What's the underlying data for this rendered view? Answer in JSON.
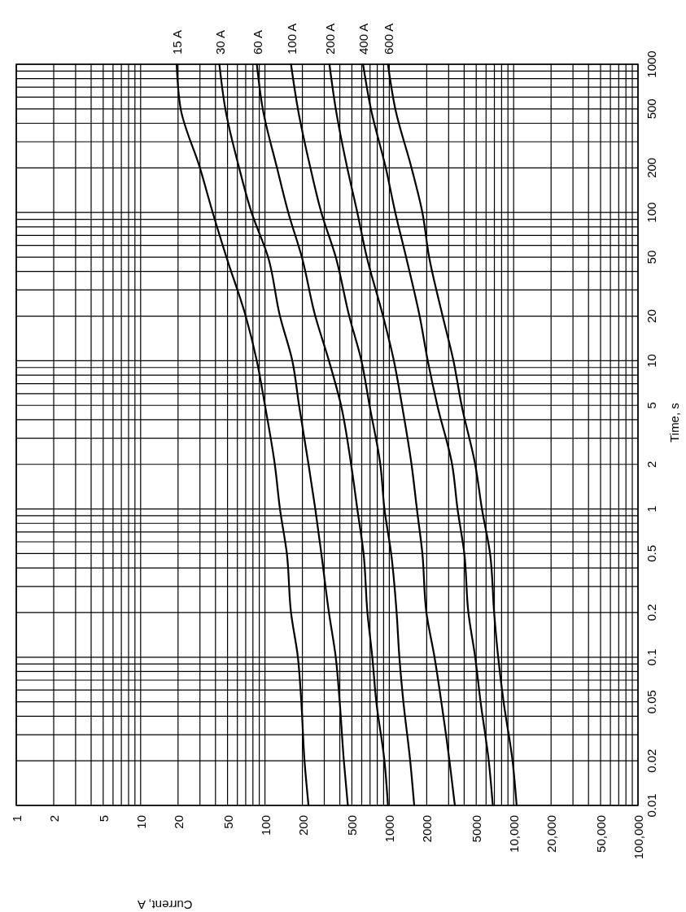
{
  "chart_data": {
    "type": "line",
    "xlabel": "Current, A",
    "ylabel": "Time, s",
    "log": "xy",
    "grid": true,
    "marker": "none",
    "line_style": "solid",
    "xlim": [
      1,
      100000
    ],
    "ylim": [
      0.01,
      1000
    ],
    "xticks": [
      1,
      2,
      5,
      10,
      20,
      50,
      100,
      200,
      500,
      1000,
      2000,
      5000,
      {
        "value": 10000,
        "label": "10,000"
      },
      {
        "value": 20000,
        "label": "20,000"
      },
      {
        "value": 50000,
        "label": "50,000"
      },
      {
        "value": 100000,
        "label": "100,000"
      }
    ],
    "yticks": [
      0.01,
      0.02,
      0.05,
      0.1,
      0.2,
      0.5,
      1,
      2,
      5,
      10,
      20,
      50,
      100,
      200,
      500,
      1000
    ],
    "series": [
      {
        "name": "15 A",
        "color": "#000000",
        "x": [
          19.5,
          21,
          30,
          38,
          49,
          70,
          86,
          100,
          120,
          132,
          150,
          162,
          184,
          196,
          208,
          224
        ],
        "values": [
          1000,
          500,
          200,
          100,
          50,
          20,
          10,
          5,
          2,
          1,
          0.5,
          0.2,
          0.1,
          0.05,
          0.02,
          0.01
        ]
      },
      {
        "name": "30 A",
        "color": "#000000",
        "x": [
          43,
          48,
          62,
          78,
          106,
          132,
          166,
          188,
          224,
          254,
          284,
          327,
          371,
          399,
          431,
          464
        ],
        "values": [
          1000,
          500,
          200,
          100,
          50,
          20,
          10,
          5,
          2,
          1,
          0.5,
          0.2,
          0.1,
          0.05,
          0.02,
          0.01
        ]
      },
      {
        "name": "60 A",
        "color": "#000000",
        "x": [
          86,
          96,
          125,
          154,
          198,
          254,
          327,
          409,
          493,
          553,
          621,
          667,
          730,
          786,
          914,
          975
        ],
        "values": [
          1000,
          500,
          200,
          100,
          50,
          20,
          10,
          5,
          2,
          1,
          0.5,
          0.2,
          0.1,
          0.05,
          0.02,
          0.01
        ]
      },
      {
        "name": "100 A",
        "color": "#000000",
        "x": [
          162,
          184,
          232,
          284,
          371,
          476,
          597,
          693,
          847,
          914,
          1035,
          1145,
          1205,
          1298,
          1472,
          1586
        ],
        "values": [
          1000,
          500,
          200,
          100,
          50,
          20,
          10,
          5,
          2,
          1,
          0.5,
          0.2,
          0.1,
          0.05,
          0.02,
          0.01
        ]
      },
      {
        "name": "200 A",
        "color": "#000000",
        "x": [
          330,
          371,
          459,
          553,
          659,
          891,
          1089,
          1265,
          1509,
          1667,
          1845,
          1988,
          2310,
          2620,
          3047,
          3367
        ],
        "values": [
          1000,
          500,
          200,
          100,
          50,
          20,
          10,
          5,
          2,
          1,
          0.5,
          0.2,
          0.1,
          0.05,
          0.02,
          0.01
        ]
      },
      {
        "name": "400 A",
        "color": "#000000",
        "x": [
          615,
          711,
          937,
          1117,
          1365,
          1754,
          2039,
          2432,
          3200,
          3538,
          4012,
          4325,
          4906,
          5420,
          6305,
          6798
        ],
        "values": [
          1000,
          500,
          200,
          100,
          50,
          20,
          10,
          5,
          2,
          1,
          0.5,
          0.2,
          0.1,
          0.05,
          0.02,
          0.01
        ]
      },
      {
        "name": "600 A",
        "color": "#000000",
        "x": [
          975,
          1117,
          1509,
          1845,
          2091,
          2686,
          3281,
          3816,
          4906,
          5560,
          6461,
          6966,
          7510,
          8300,
          9800,
          10570
        ],
        "values": [
          1000,
          500,
          200,
          100,
          50,
          20,
          10,
          5,
          2,
          1,
          0.5,
          0.2,
          0.1,
          0.05,
          0.02,
          0.01
        ]
      }
    ]
  }
}
